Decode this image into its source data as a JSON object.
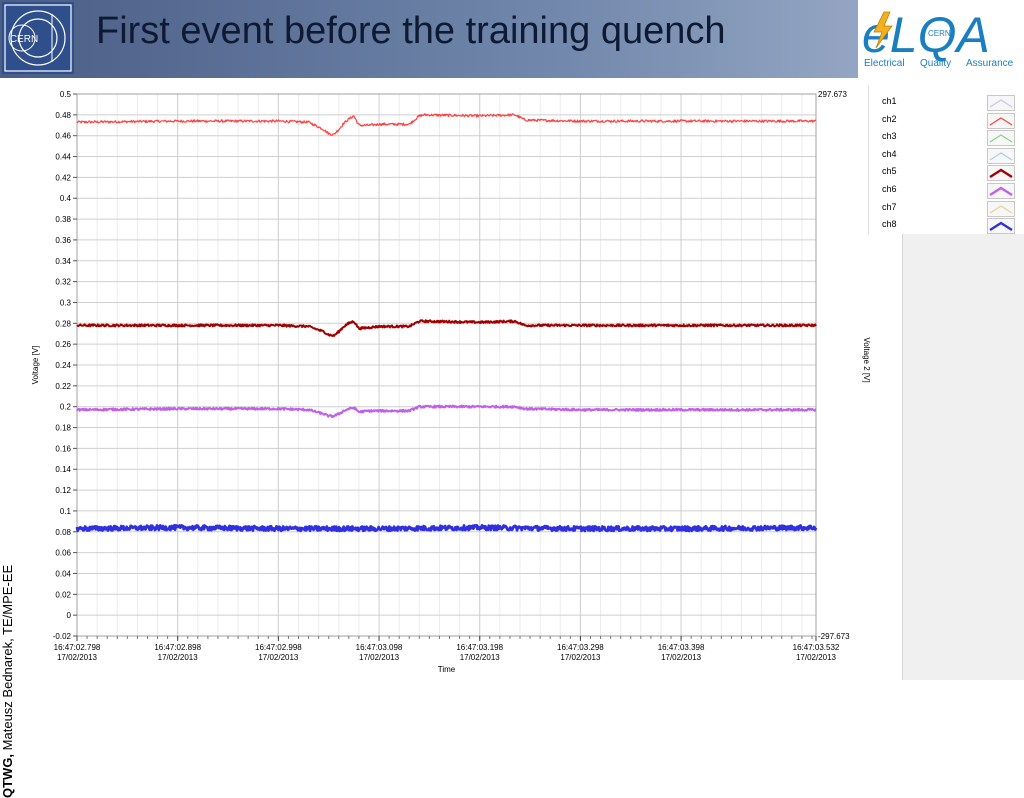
{
  "slide": {
    "title": "First event before the training quench",
    "cern_logo_text": "CERN",
    "elqa_logo": {
      "main": "eLQA",
      "cern": "CERN",
      "tagline": [
        "Electrical",
        "Quality",
        "Assurance"
      ]
    },
    "footer_bold": "QTWG,",
    "footer_text": "Mateusz Bednarek, TE/MPE-EE",
    "colors": {
      "header_left": "#4b5e86",
      "header_right": "#a6b6cf"
    }
  },
  "chart_data": {
    "type": "line",
    "title": "",
    "xlabel": "Time",
    "ylabel": "Voltage [V]",
    "ylabel_right": "Voltage 2 [V]",
    "ylim": [
      -0.02,
      0.5
    ],
    "yticks": [
      -0.02,
      0,
      0.02,
      0.04,
      0.06,
      0.08,
      0.1,
      0.12,
      0.14,
      0.16,
      0.18,
      0.2,
      0.22,
      0.24,
      0.26,
      0.28,
      0.3,
      0.32,
      0.34,
      0.36,
      0.38,
      0.4,
      0.42,
      0.44,
      0.46,
      0.48,
      0.5
    ],
    "ytick_labels": [
      "-0.02",
      "0",
      "0.02",
      "0.04",
      "0.06",
      "0.08",
      "0.1",
      "0.12",
      "0.14",
      "0.16",
      "0.18",
      "0.2",
      "0.22",
      "0.24",
      "0.26",
      "0.28",
      "0.3",
      "0.32",
      "0.34",
      "0.36",
      "0.38",
      "0.4",
      "0.42",
      "0.44",
      "0.46",
      "0.48",
      "0.5"
    ],
    "ylim_right_labels": [
      "297.673",
      "-297.673"
    ],
    "xlim": [
      0,
      0.734
    ],
    "xticks": [
      {
        "x": 0.0,
        "time": "16:47:02.798",
        "date": "17/02/2013"
      },
      {
        "x": 0.1,
        "time": "16:47:02.898",
        "date": "17/02/2013"
      },
      {
        "x": 0.2,
        "time": "16:47:02.998",
        "date": "17/02/2013"
      },
      {
        "x": 0.3,
        "time": "16:47:03.098",
        "date": "17/02/2013"
      },
      {
        "x": 0.4,
        "time": "16:47:03.198",
        "date": "17/02/2013"
      },
      {
        "x": 0.5,
        "time": "16:47:03.298",
        "date": "17/02/2013"
      },
      {
        "x": 0.6,
        "time": "16:47:03.398",
        "date": "17/02/2013"
      },
      {
        "x": 0.734,
        "time": "16:47:03.532",
        "date": "17/02/2013"
      }
    ],
    "grid": true,
    "legend_position": "right",
    "legend": [
      {
        "name": "ch1",
        "color": "#c8c8ec"
      },
      {
        "name": "ch2",
        "color": "#ff4040"
      },
      {
        "name": "ch3",
        "color": "#88d488"
      },
      {
        "name": "ch4",
        "color": "#a8d0ec"
      },
      {
        "name": "ch5",
        "color": "#a00000"
      },
      {
        "name": "ch6",
        "color": "#c060e8"
      },
      {
        "name": "ch7",
        "color": "#e8d090"
      },
      {
        "name": "ch8",
        "color": "#3030e0"
      }
    ],
    "series": [
      {
        "name": "ch2",
        "color": "#ff4040",
        "width": 1.2,
        "noise": 0.0012,
        "x": [
          0,
          0.1,
          0.2,
          0.23,
          0.245,
          0.25,
          0.255,
          0.26,
          0.265,
          0.27,
          0.275,
          0.28,
          0.29,
          0.3,
          0.33,
          0.34,
          0.345,
          0.4,
          0.435,
          0.445,
          0.5,
          0.6,
          0.734
        ],
        "y": [
          0.473,
          0.474,
          0.474,
          0.473,
          0.466,
          0.462,
          0.461,
          0.466,
          0.472,
          0.476,
          0.479,
          0.47,
          0.47,
          0.471,
          0.471,
          0.479,
          0.48,
          0.479,
          0.48,
          0.475,
          0.474,
          0.474,
          0.474
        ]
      },
      {
        "name": "ch5",
        "color": "#a00000",
        "width": 2.0,
        "noise": 0.001,
        "x": [
          0,
          0.1,
          0.2,
          0.23,
          0.245,
          0.25,
          0.255,
          0.26,
          0.265,
          0.27,
          0.275,
          0.28,
          0.29,
          0.3,
          0.33,
          0.34,
          0.345,
          0.4,
          0.435,
          0.445,
          0.5,
          0.6,
          0.734
        ],
        "y": [
          0.278,
          0.278,
          0.278,
          0.277,
          0.272,
          0.269,
          0.268,
          0.272,
          0.277,
          0.28,
          0.282,
          0.275,
          0.276,
          0.277,
          0.277,
          0.282,
          0.282,
          0.281,
          0.282,
          0.278,
          0.278,
          0.278,
          0.278
        ]
      },
      {
        "name": "ch6",
        "color": "#c060e8",
        "width": 2.0,
        "noise": 0.001,
        "x": [
          0,
          0.1,
          0.2,
          0.23,
          0.245,
          0.25,
          0.255,
          0.26,
          0.265,
          0.27,
          0.275,
          0.28,
          0.29,
          0.3,
          0.33,
          0.34,
          0.345,
          0.4,
          0.435,
          0.445,
          0.5,
          0.6,
          0.734
        ],
        "y": [
          0.197,
          0.198,
          0.198,
          0.197,
          0.193,
          0.191,
          0.191,
          0.193,
          0.196,
          0.198,
          0.199,
          0.195,
          0.196,
          0.196,
          0.196,
          0.2,
          0.2,
          0.2,
          0.2,
          0.198,
          0.197,
          0.197,
          0.197
        ]
      },
      {
        "name": "ch8",
        "color": "#3030e0",
        "width": 2.8,
        "noise": 0.0022,
        "x": [
          0,
          0.1,
          0.2,
          0.3,
          0.4,
          0.5,
          0.6,
          0.734
        ],
        "y": [
          0.083,
          0.084,
          0.083,
          0.083,
          0.084,
          0.083,
          0.083,
          0.084
        ]
      }
    ]
  }
}
